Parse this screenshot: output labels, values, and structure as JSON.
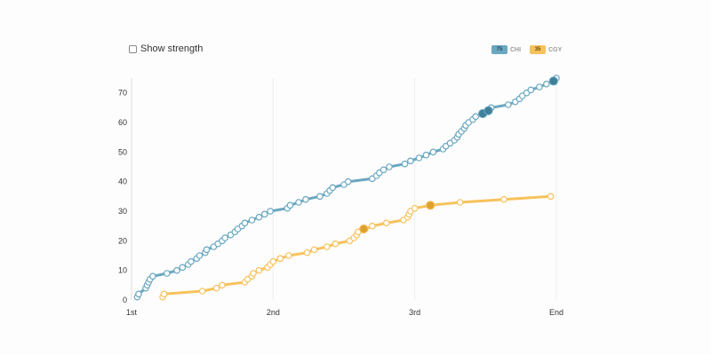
{
  "controls": {
    "show_strength_label": "Show strength",
    "show_strength_checked": false
  },
  "legend": [
    {
      "value": "75",
      "name": "CHI",
      "color": "#6aa7c0",
      "textColor": "#23485a"
    },
    {
      "value": "35",
      "name": "CGY",
      "color": "#f7c25c",
      "textColor": "#6a4a00"
    }
  ],
  "chart_data": {
    "type": "line",
    "x_ticks": [
      {
        "pos": 0,
        "label": "1st"
      },
      {
        "pos": 1,
        "label": "2nd"
      },
      {
        "pos": 2,
        "label": "3rd"
      },
      {
        "pos": 3,
        "label": "End"
      }
    ],
    "xlim": [
      0,
      3
    ],
    "ylim": [
      0,
      75
    ],
    "y_ticks": [
      0,
      10,
      20,
      30,
      40,
      50,
      60,
      70
    ],
    "grid_x": true,
    "series": [
      {
        "name": "CHI",
        "color": "#6aa7c0",
        "highlight_color": "#3f7f9a",
        "points": [
          [
            0.04,
            1
          ],
          [
            0.05,
            2
          ],
          [
            0.1,
            4
          ],
          [
            0.11,
            5
          ],
          [
            0.12,
            6
          ],
          [
            0.13,
            7
          ],
          [
            0.15,
            8
          ],
          [
            0.25,
            9
          ],
          [
            0.32,
            10
          ],
          [
            0.36,
            11
          ],
          [
            0.4,
            12
          ],
          [
            0.42,
            13
          ],
          [
            0.46,
            14
          ],
          [
            0.48,
            15
          ],
          [
            0.52,
            16
          ],
          [
            0.53,
            17
          ],
          [
            0.58,
            18
          ],
          [
            0.61,
            19
          ],
          [
            0.64,
            20
          ],
          [
            0.66,
            21
          ],
          [
            0.7,
            22
          ],
          [
            0.73,
            23
          ],
          [
            0.75,
            24
          ],
          [
            0.78,
            25
          ],
          [
            0.8,
            26
          ],
          [
            0.85,
            27
          ],
          [
            0.9,
            28
          ],
          [
            0.94,
            29
          ],
          [
            0.98,
            30
          ],
          [
            1.1,
            31
          ],
          [
            1.12,
            32
          ],
          [
            1.18,
            33
          ],
          [
            1.23,
            34
          ],
          [
            1.33,
            35
          ],
          [
            1.38,
            36
          ],
          [
            1.4,
            37
          ],
          [
            1.42,
            38
          ],
          [
            1.5,
            39
          ],
          [
            1.53,
            40
          ],
          [
            1.7,
            41
          ],
          [
            1.73,
            42
          ],
          [
            1.75,
            43
          ],
          [
            1.78,
            44
          ],
          [
            1.82,
            45
          ],
          [
            1.93,
            46
          ],
          [
            1.97,
            47
          ],
          [
            2.03,
            48
          ],
          [
            2.08,
            49
          ],
          [
            2.13,
            50
          ],
          [
            2.2,
            51
          ],
          [
            2.22,
            52
          ],
          [
            2.25,
            53
          ],
          [
            2.28,
            54
          ],
          [
            2.3,
            55
          ],
          [
            2.31,
            56
          ],
          [
            2.33,
            57
          ],
          [
            2.35,
            58
          ],
          [
            2.36,
            59
          ],
          [
            2.38,
            60
          ],
          [
            2.41,
            61
          ],
          [
            2.43,
            62
          ],
          [
            2.49,
            63
          ],
          [
            2.52,
            64
          ],
          [
            2.54,
            65
          ],
          [
            2.66,
            66
          ],
          [
            2.71,
            67
          ],
          [
            2.74,
            68
          ],
          [
            2.76,
            69
          ],
          [
            2.79,
            70
          ],
          [
            2.82,
            71
          ],
          [
            2.88,
            72
          ],
          [
            2.93,
            73
          ],
          [
            2.98,
            74
          ],
          [
            3.0,
            75
          ]
        ],
        "highlights": [
          [
            2.48,
            63
          ],
          [
            2.52,
            64
          ],
          [
            2.98,
            74
          ]
        ]
      },
      {
        "name": "CGY",
        "color": "#f7c25c",
        "highlight_color": "#e0a030",
        "points": [
          [
            0.22,
            1
          ],
          [
            0.23,
            2
          ],
          [
            0.5,
            3
          ],
          [
            0.6,
            4
          ],
          [
            0.64,
            5
          ],
          [
            0.8,
            6
          ],
          [
            0.82,
            7
          ],
          [
            0.85,
            8
          ],
          [
            0.86,
            9
          ],
          [
            0.9,
            10
          ],
          [
            0.96,
            11
          ],
          [
            0.98,
            12
          ],
          [
            1.0,
            13
          ],
          [
            1.05,
            14
          ],
          [
            1.11,
            15
          ],
          [
            1.24,
            16
          ],
          [
            1.29,
            17
          ],
          [
            1.38,
            18
          ],
          [
            1.44,
            19
          ],
          [
            1.54,
            20
          ],
          [
            1.57,
            21
          ],
          [
            1.59,
            22
          ],
          [
            1.6,
            23
          ],
          [
            1.65,
            24
          ],
          [
            1.7,
            25
          ],
          [
            1.8,
            26
          ],
          [
            1.92,
            27
          ],
          [
            1.95,
            28
          ],
          [
            1.96,
            29
          ],
          [
            1.97,
            30
          ],
          [
            2.0,
            31
          ],
          [
            2.11,
            32
          ],
          [
            2.32,
            33
          ],
          [
            2.63,
            34
          ],
          [
            2.96,
            35
          ]
        ],
        "highlights": [
          [
            1.64,
            24
          ],
          [
            2.11,
            32
          ]
        ]
      }
    ]
  }
}
